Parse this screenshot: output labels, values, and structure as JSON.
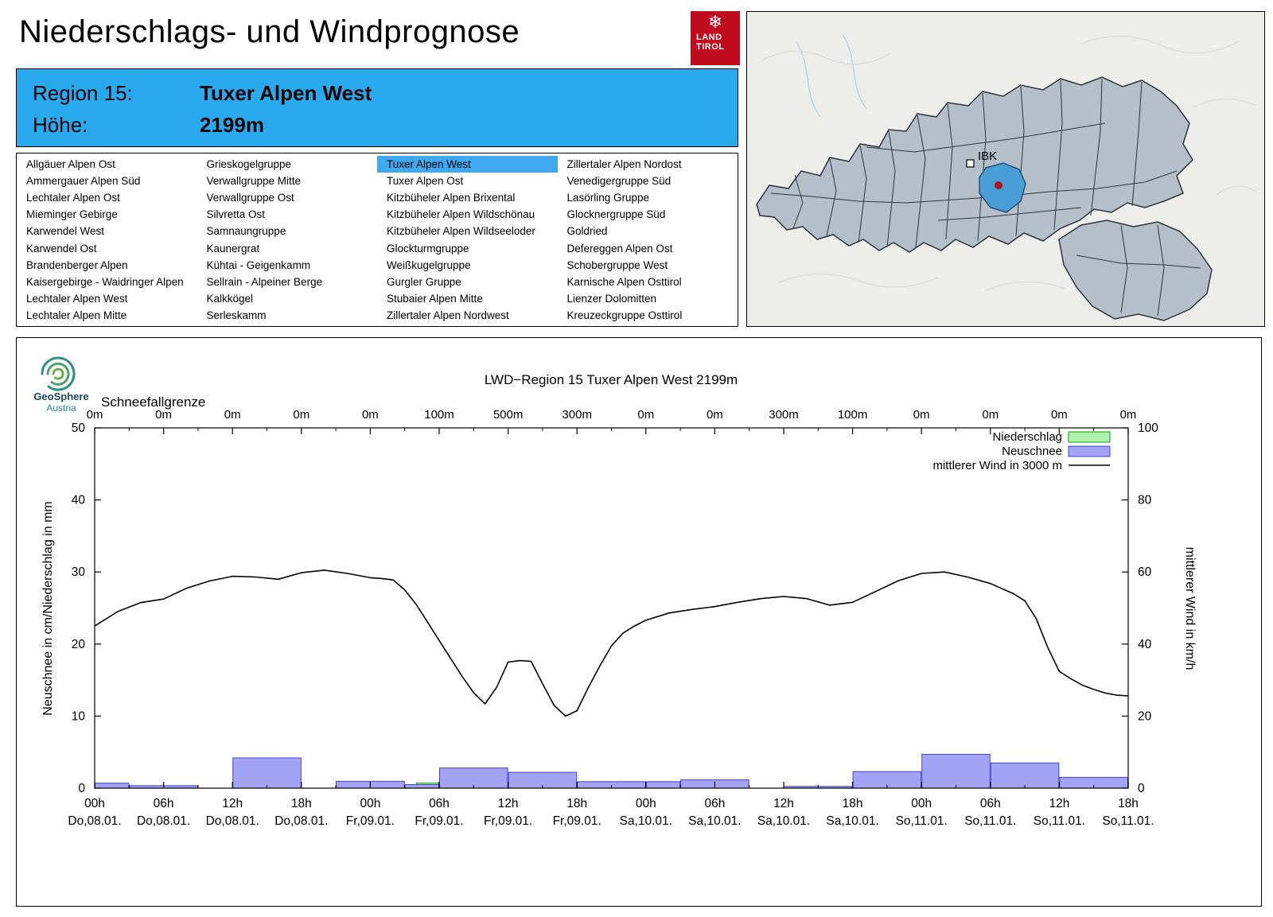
{
  "header": {
    "title": "Niederschlags- und Windprognose"
  },
  "logo": {
    "line1": "LAND",
    "line2": "TIROL"
  },
  "region_box": {
    "region_label": "Region 15:",
    "region_name": "Tuxer Alpen West",
    "altitude_label": "Höhe:",
    "altitude_value": "2199m"
  },
  "region_table": {
    "selected": "Tuxer Alpen West",
    "columns": [
      [
        "Allgäuer Alpen Ost",
        "Ammergauer Alpen Süd",
        "Lechtaler Alpen Ost",
        "Mieminger Gebirge",
        "Karwendel West",
        "Karwendel Ost",
        "Brandenberger Alpen",
        "Kaisergebirge - Waidringer Alpen",
        "Lechtaler Alpen West",
        "Lechtaler Alpen Mitte"
      ],
      [
        "Grieskogelgruppe",
        "Verwallgruppe Mitte",
        "Verwallgruppe Ost",
        "Silvretta Ost",
        "Samnaungruppe",
        "Kaunergrat",
        "Kühtai - Geigenkamm",
        "Sellrain - Alpeiner Berge",
        "Kalkkögel",
        "Serleskamm"
      ],
      [
        "Tuxer Alpen West",
        "Tuxer Alpen Ost",
        "Kitzbüheler Alpen Brixental",
        "Kitzbüheler Alpen Wildschönau",
        "Kitzbüheler Alpen Wildseeloder",
        "Glockturmgruppe",
        "Weißkugelgruppe",
        "Gurgler Gruppe",
        "Stubaier Alpen Mitte",
        "Zillertaler Alpen Nordwest"
      ],
      [
        "Zillertaler Alpen Nordost",
        "Venedigergruppe Süd",
        "Lasörling Gruppe",
        "Glocknergruppe Süd",
        "Goldried",
        "Defereggen Alpen Ost",
        "Schobergruppe West",
        "Karnische Alpen Osttirol",
        "Lienzer Dolomitten",
        "Kreuzeckgruppe Osttirol"
      ]
    ]
  },
  "map": {
    "city_label": "IBK"
  },
  "geosphere": {
    "name": "GeoSphere",
    "sub": "Austria"
  },
  "chart_data": {
    "type": "composite",
    "title": "LWD−Region 15 Tuxer Alpen West 2199m",
    "snowline": {
      "label": "Schneefallgrenze",
      "values": [
        "0m",
        "0m",
        "0m",
        "0m",
        "0m",
        "100m",
        "500m",
        "300m",
        "0m",
        "0m",
        "300m",
        "100m",
        "0m",
        "0m",
        "0m",
        "0m"
      ]
    },
    "ylabel_left": "Neuschnee in cm/Niederschlag in mm",
    "ylabel_right": "mittlerer Wind in km/h",
    "ylim_left": [
      0,
      50
    ],
    "ylim_right": [
      0,
      100
    ],
    "yticks_left": [
      0,
      10,
      20,
      30,
      40,
      50
    ],
    "yticks_right": [
      0,
      20,
      40,
      60,
      80,
      100
    ],
    "x_hours_range": [
      0,
      90
    ],
    "xticks": [
      {
        "hour": 0,
        "time": "00h",
        "date": "Do,08.01."
      },
      {
        "hour": 6,
        "time": "06h",
        "date": "Do,08.01."
      },
      {
        "hour": 12,
        "time": "12h",
        "date": "Do,08.01."
      },
      {
        "hour": 18,
        "time": "18h",
        "date": "Do,08.01."
      },
      {
        "hour": 24,
        "time": "00h",
        "date": "Fr,09.01."
      },
      {
        "hour": 30,
        "time": "06h",
        "date": "Fr,09.01."
      },
      {
        "hour": 36,
        "time": "12h",
        "date": "Fr,09.01."
      },
      {
        "hour": 42,
        "time": "18h",
        "date": "Fr,09.01."
      },
      {
        "hour": 48,
        "time": "00h",
        "date": "Sa,10.01."
      },
      {
        "hour": 54,
        "time": "06h",
        "date": "Sa,10.01."
      },
      {
        "hour": 60,
        "time": "12h",
        "date": "Sa,10.01."
      },
      {
        "hour": 66,
        "time": "18h",
        "date": "Sa,10.01."
      },
      {
        "hour": 72,
        "time": "00h",
        "date": "So,11.01."
      },
      {
        "hour": 78,
        "time": "06h",
        "date": "So,11.01."
      },
      {
        "hour": 84,
        "time": "12h",
        "date": "So,11.01."
      },
      {
        "hour": 90,
        "time": "18h",
        "date": "So,11.01."
      }
    ],
    "legend": [
      {
        "label": "Niederschlag",
        "type": "box",
        "fill": "#aef2ae",
        "stroke": "#00a800"
      },
      {
        "label": "Neuschnee",
        "type": "box",
        "fill": "#a3a3f5",
        "stroke": "#4444cc"
      },
      {
        "label": "mittlerer Wind in 3000 m",
        "type": "line",
        "stroke": "#000000"
      }
    ],
    "niederschlag_bars": [
      {
        "start": 28,
        "end": 32,
        "value": 0.7
      }
    ],
    "neuschnee_bars": [
      {
        "start": 0,
        "end": 3,
        "value": 0.7
      },
      {
        "start": 3,
        "end": 9,
        "value": 0.35
      },
      {
        "start": 12,
        "end": 18,
        "value": 4.2
      },
      {
        "start": 21,
        "end": 27,
        "value": 0.95
      },
      {
        "start": 27,
        "end": 30,
        "value": 0.5
      },
      {
        "start": 30,
        "end": 36,
        "value": 2.8
      },
      {
        "start": 36,
        "end": 42,
        "value": 2.2
      },
      {
        "start": 42,
        "end": 48,
        "value": 0.9
      },
      {
        "start": 48,
        "end": 51,
        "value": 0.9
      },
      {
        "start": 51,
        "end": 57,
        "value": 1.15
      },
      {
        "start": 60,
        "end": 66,
        "value": 0.25
      },
      {
        "start": 66,
        "end": 72,
        "value": 2.3
      },
      {
        "start": 72,
        "end": 78,
        "value": 4.7
      },
      {
        "start": 78,
        "end": 84,
        "value": 3.5
      },
      {
        "start": 84,
        "end": 90,
        "value": 1.5
      }
    ],
    "wind_series": {
      "name": "mittlerer Wind in 3000 m",
      "x": [
        0,
        2,
        4,
        6,
        8,
        10,
        12,
        14,
        16,
        18,
        20,
        22,
        24,
        25,
        26,
        27,
        28,
        29,
        30,
        31,
        32,
        33,
        34,
        35,
        36,
        37,
        38,
        39,
        40,
        41,
        42,
        43,
        44,
        45,
        46,
        47,
        48,
        50,
        52,
        54,
        56,
        58,
        60,
        62,
        64,
        66,
        68,
        70,
        72,
        74,
        76,
        78,
        80,
        81,
        82,
        83,
        84,
        85,
        86,
        87,
        88,
        89,
        90
      ],
      "y_kmh": [
        45,
        49,
        51.5,
        52.5,
        55.5,
        57.5,
        58.8,
        58.6,
        58,
        59.8,
        60.5,
        59.6,
        58.4,
        58.2,
        57.8,
        55,
        51,
        46,
        41,
        36,
        31,
        26.5,
        23.4,
        28,
        35,
        35.4,
        35.2,
        29,
        23,
        20,
        21.5,
        28,
        34,
        39.5,
        43,
        45,
        46.6,
        48.6,
        49.6,
        50.4,
        51.6,
        52.6,
        53.2,
        52.6,
        50.8,
        51.6,
        54.6,
        57.6,
        59.6,
        60,
        58.6,
        56.8,
        54,
        52,
        47,
        39,
        32.4,
        30.4,
        28.6,
        27.4,
        26.4,
        25.8,
        25.6
      ]
    }
  }
}
